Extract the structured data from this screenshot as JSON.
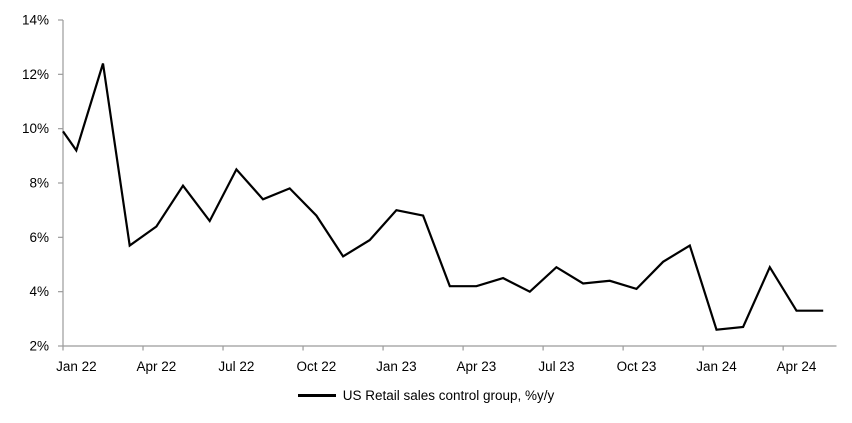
{
  "chart_data": {
    "type": "line",
    "title": "",
    "legend": "US Retail sales control group, %y/y",
    "legend_position": "bottom-center",
    "grid": "off",
    "line_color": "#000000",
    "axis_color": "#9B9B9B",
    "ylim": [
      2,
      14
    ],
    "y_ticks": [
      "2%",
      "4%",
      "6%",
      "8%",
      "10%",
      "12%",
      "14%"
    ],
    "y_tick_values": [
      2,
      4,
      6,
      8,
      10,
      12,
      14
    ],
    "x": [
      "Jan 22",
      "Feb 22",
      "Mar 22",
      "Apr 22",
      "May 22",
      "Jun 22",
      "Jul 22",
      "Aug 22",
      "Sep 22",
      "Oct 22",
      "Nov 22",
      "Dec 22",
      "Jan 23",
      "Feb 23",
      "Mar 23",
      "Apr 23",
      "May 23",
      "Jun 23",
      "Jul 23",
      "Aug 23",
      "Sep 23",
      "Oct 23",
      "Nov 23",
      "Dec 23",
      "Jan 24",
      "Feb 24",
      "Mar 24",
      "Apr 24",
      "May 24"
    ],
    "values": [
      9.2,
      12.4,
      5.7,
      6.4,
      7.9,
      6.6,
      8.5,
      7.4,
      7.8,
      6.8,
      5.3,
      5.9,
      7.0,
      6.8,
      4.2,
      4.2,
      4.5,
      4.0,
      4.9,
      4.3,
      4.4,
      4.1,
      5.1,
      5.7,
      2.6,
      2.7,
      4.9,
      3.3,
      3.3
    ],
    "left_edge_intersect_value": 9.9,
    "x_labels_shown": [
      "Jan 22",
      "Apr 22",
      "Jul 22",
      "Oct 22",
      "Jan 23",
      "Apr 23",
      "Jul 23",
      "Oct 23",
      "Jan 24",
      "Apr 24"
    ],
    "x_tick_interval_months": 3
  }
}
